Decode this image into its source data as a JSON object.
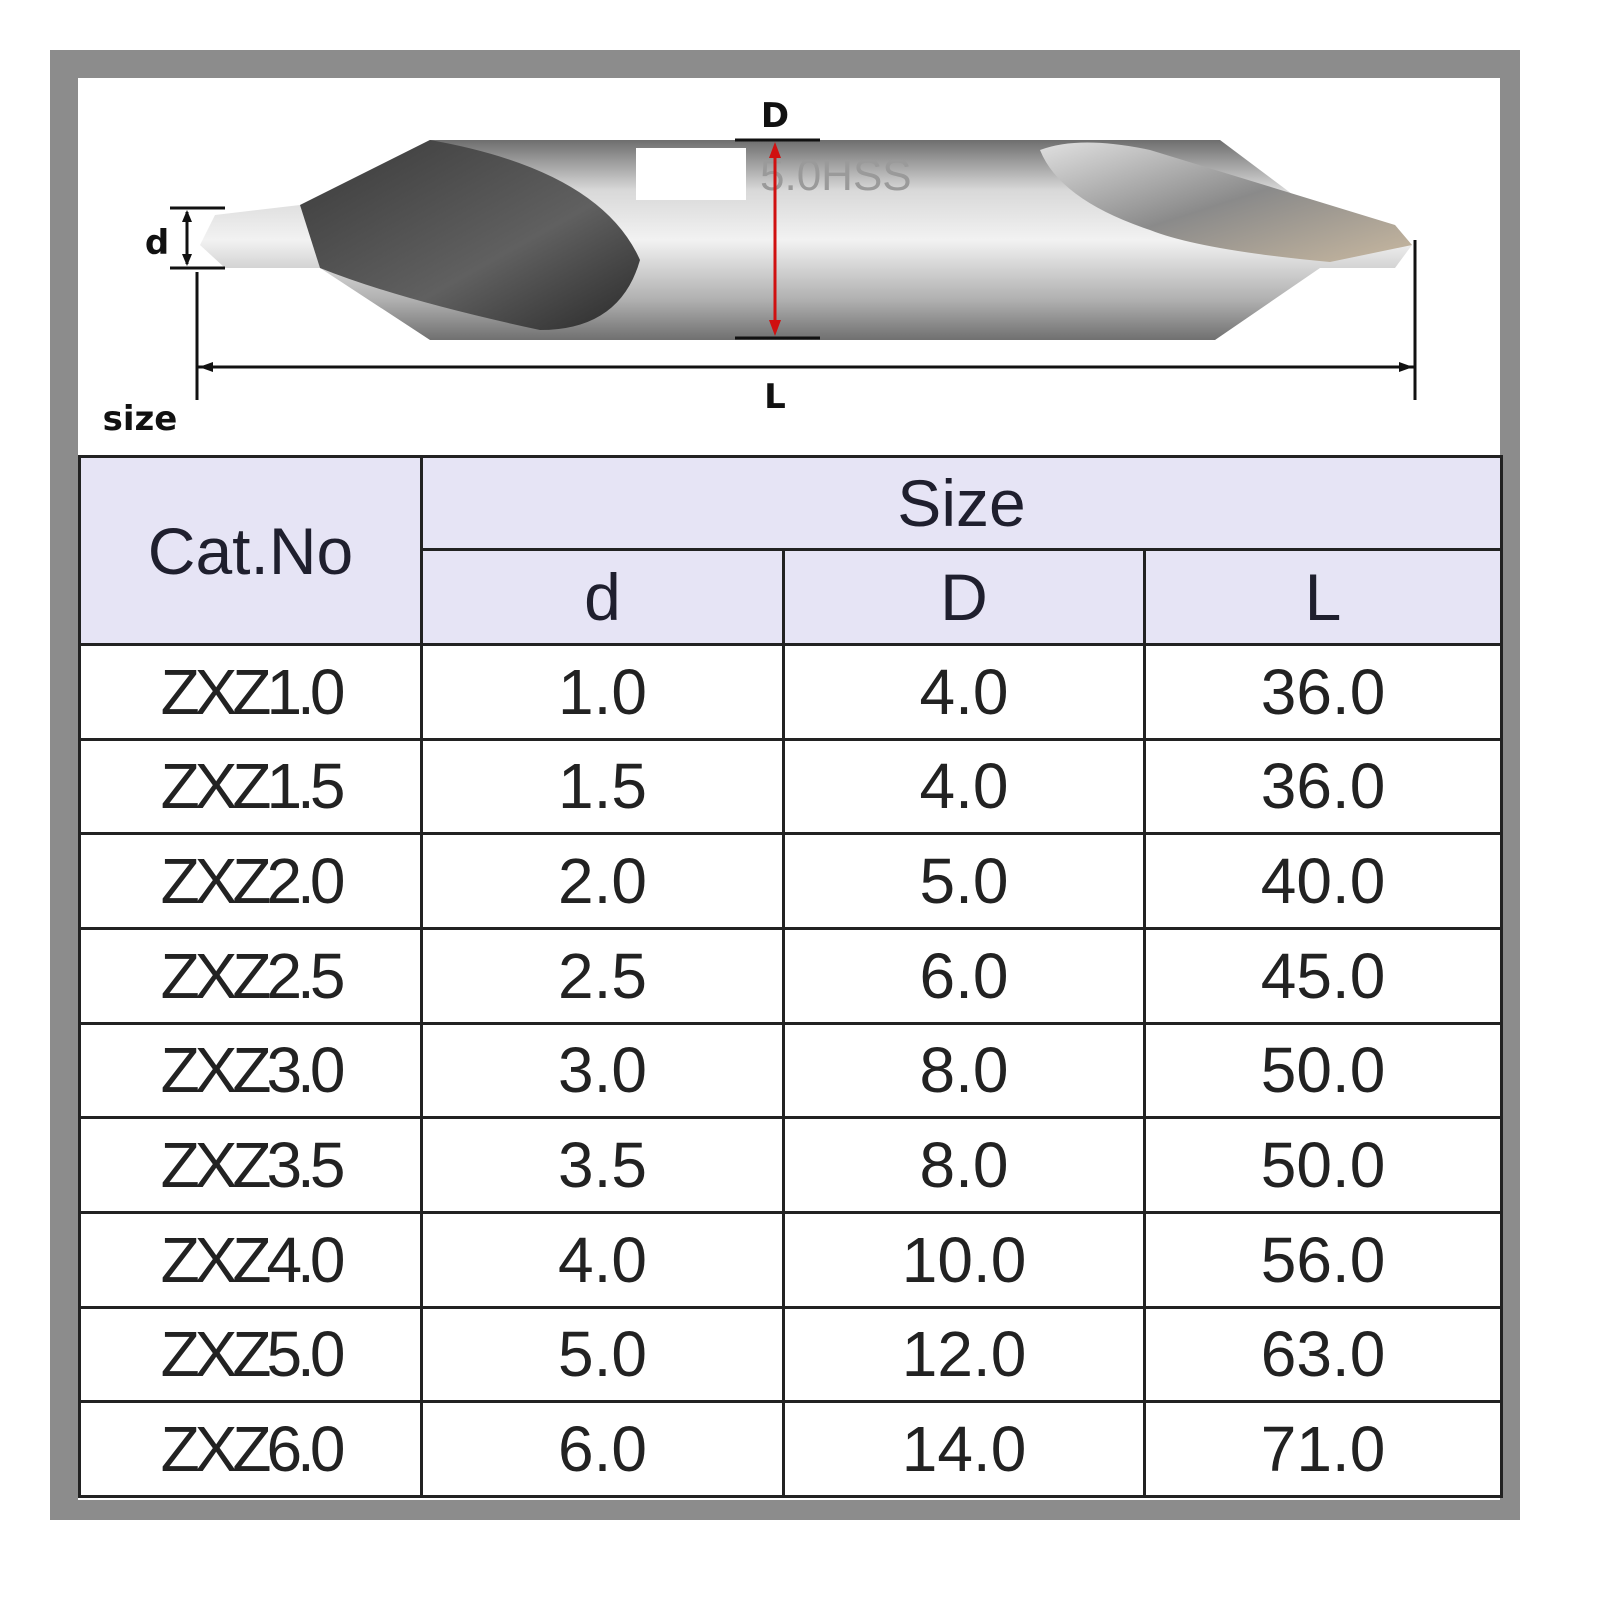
{
  "diagram": {
    "label_D": "D",
    "label_d": "d",
    "label_L": "L",
    "engraving": "5.0HSS",
    "caption": "size"
  },
  "table": {
    "header": {
      "cat_no": "Cat.No",
      "size": "Size",
      "columns": [
        "d",
        "D",
        "L"
      ]
    },
    "rows": [
      [
        "ZXZ1.0",
        "1.0",
        "4.0",
        "36.0"
      ],
      [
        "ZXZ1.5",
        "1.5",
        "4.0",
        "36.0"
      ],
      [
        "ZXZ2.0",
        "2.0",
        "5.0",
        "40.0"
      ],
      [
        "ZXZ2.5",
        "2.5",
        "6.0",
        "45.0"
      ],
      [
        "ZXZ3.0",
        "3.0",
        "8.0",
        "50.0"
      ],
      [
        "ZXZ3.5",
        "3.5",
        "8.0",
        "50.0"
      ],
      [
        "ZXZ4.0",
        "4.0",
        "10.0",
        "56.0"
      ],
      [
        "ZXZ5.0",
        "5.0",
        "12.0",
        "63.0"
      ],
      [
        "ZXZ6.0",
        "6.0",
        "14.0",
        "71.0"
      ]
    ]
  }
}
